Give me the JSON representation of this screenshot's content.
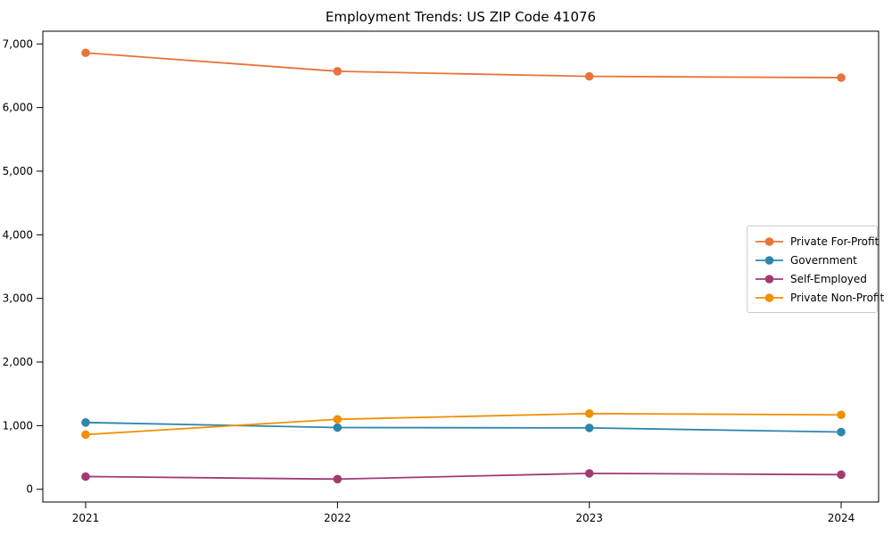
{
  "chart_data": {
    "type": "line",
    "title": "Employment Trends: US ZIP Code 41076",
    "xlabel": "",
    "ylabel": "",
    "x": [
      "2021",
      "2022",
      "2023",
      "2024"
    ],
    "series": [
      {
        "name": "Private For-Profit",
        "color": "#E8743B",
        "values": [
          6860,
          6570,
          6490,
          6470
        ]
      },
      {
        "name": "Government",
        "color": "#2E86AB",
        "values": [
          1050,
          970,
          965,
          900
        ]
      },
      {
        "name": "Self-Employed",
        "color": "#A23B72",
        "values": [
          200,
          160,
          250,
          230
        ]
      },
      {
        "name": "Private Non-Profit",
        "color": "#F18F01",
        "values": [
          860,
          1100,
          1190,
          1170
        ]
      }
    ],
    "yticks": [
      0,
      1000,
      2000,
      3000,
      4000,
      5000,
      6000,
      7000
    ],
    "ytick_labels": [
      "0",
      "1,000",
      "2,000",
      "3,000",
      "4,000",
      "5,000",
      "6,000",
      "7,000"
    ],
    "ylim": [
      -200,
      7200
    ],
    "grid": false,
    "legend_position": "center right",
    "marker": "circle",
    "background_color": "#ffffff",
    "axis_color": "#000000"
  }
}
